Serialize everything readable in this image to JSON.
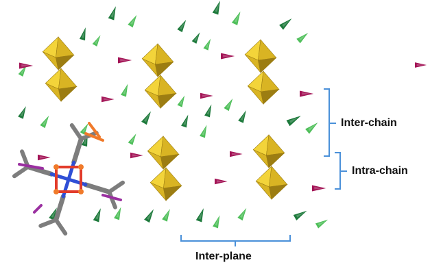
{
  "labels": {
    "inter_chain": "Inter-chain",
    "intra_chain": "Intra-chain",
    "inter_plane": "Inter-plane"
  },
  "colors": {
    "bracket": "#4a90d9",
    "polyhedron_light": "#f3d43a",
    "polyhedron_mid": "#d9b423",
    "polyhedron_dark": "#9c7d12",
    "anion_magenta": "#a31456",
    "anion_green_dark": "#1e7a3c",
    "anion_green_light": "#4fbf5a",
    "molecule_gray": "#7d7d7d",
    "molecule_blue": "#2f4fd6",
    "molecule_red": "#e23b2b",
    "molecule_purple": "#9a2fa0",
    "molecule_orange": "#f07a2a"
  },
  "structure": {
    "polyhedron_type": "octahedron-pair",
    "anion_types": [
      "magenta-triangle",
      "dark-green-triangle",
      "light-green-triangle"
    ],
    "molecule": "ball-and-stick overlay"
  }
}
